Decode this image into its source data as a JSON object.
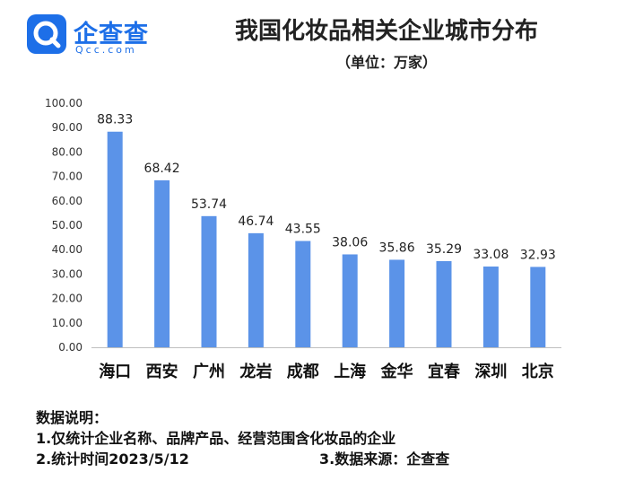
{
  "brand": {
    "name": "企查查",
    "domain": "Qcc.com",
    "color": "#1d6fe8",
    "icon": "magnifier-logo-icon"
  },
  "header": {
    "title": "我国化妆品相关企业城市分布",
    "subtitle": "（单位：万家）"
  },
  "chart_data": {
    "type": "bar",
    "title": "我国化妆品相关企业城市分布",
    "unit": "（单位：万家）",
    "categories": [
      "海口",
      "西安",
      "广州",
      "龙岩",
      "成都",
      "上海",
      "金华",
      "宜春",
      "深圳",
      "北京"
    ],
    "values": [
      88.33,
      68.42,
      53.74,
      46.74,
      43.55,
      38.06,
      35.86,
      35.29,
      33.08,
      32.93
    ],
    "value_labels": [
      "88.33",
      "68.42",
      "53.74",
      "46.74",
      "43.55",
      "38.06",
      "35.86",
      "35.29",
      "33.08",
      "32.93"
    ],
    "ylim": [
      0,
      100
    ],
    "yticks": [
      "0.00",
      "10.00",
      "20.00",
      "30.00",
      "40.00",
      "50.00",
      "60.00",
      "70.00",
      "80.00",
      "90.00",
      "100.00"
    ],
    "bar_color": "#5b93e8",
    "grid": false,
    "legend": "none"
  },
  "notes": {
    "heading": "数据说明：",
    "line1": "1.仅统计企业名称、品牌产品、经营范围含化妆品的企业",
    "line2": "2.统计时间2023/5/12",
    "line3": "3.数据来源：企查查"
  }
}
